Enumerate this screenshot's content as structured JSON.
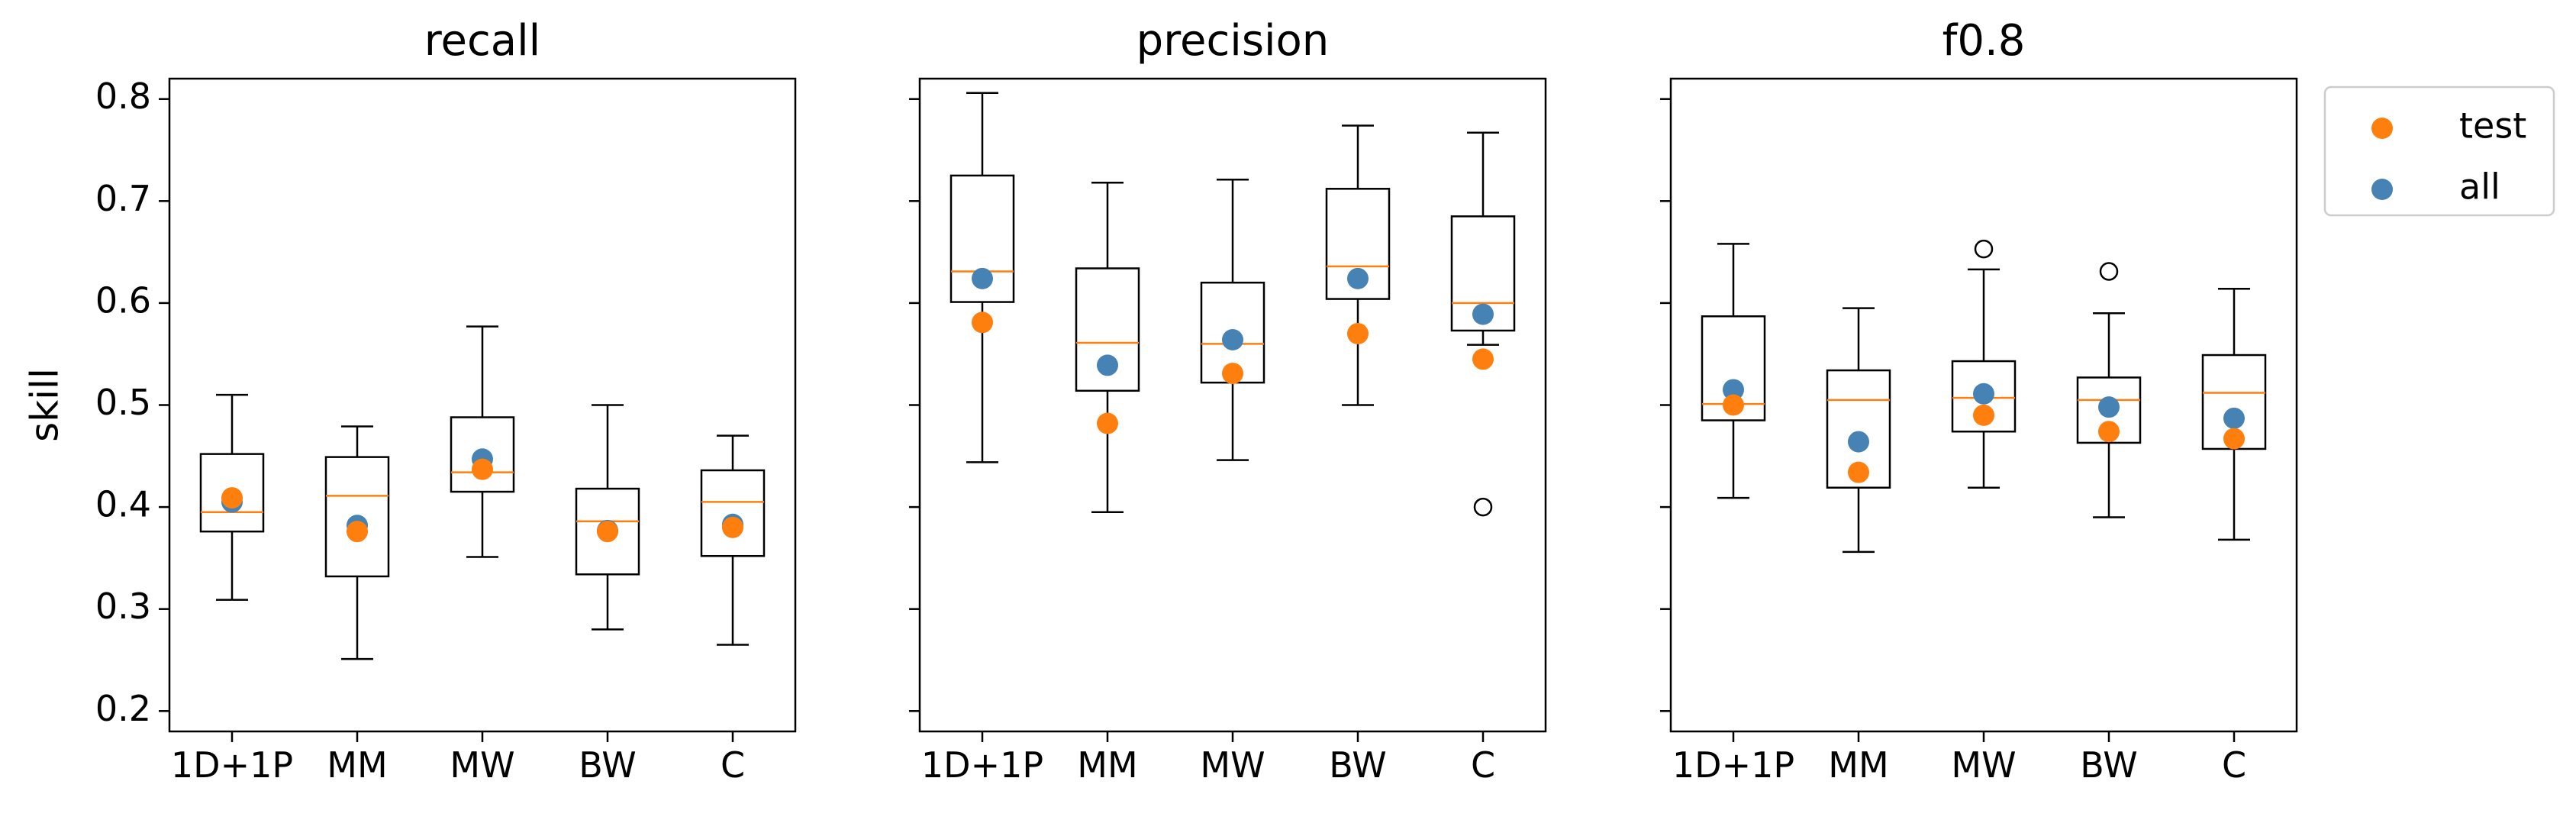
{
  "chart_data": {
    "type": "box",
    "ylabel": "skill",
    "ylim": [
      0.18,
      0.82
    ],
    "yticks": [
      0.2,
      0.3,
      0.4,
      0.5,
      0.6,
      0.7,
      0.8
    ],
    "ytick_labels": [
      "0.2",
      "0.3",
      "0.4",
      "0.5",
      "0.6",
      "0.7",
      "0.8"
    ],
    "categories": [
      "1D+1P",
      "MM",
      "MW",
      "BW",
      "C"
    ],
    "legend": {
      "placement": "upper-right-outside",
      "entries": [
        {
          "name": "test",
          "color": "#ff7f0e"
        },
        {
          "name": "all",
          "color": "#4682b4"
        }
      ]
    },
    "colors": {
      "median": "#ff7f0e",
      "test": "#ff7f0e",
      "all": "#4682b4",
      "box": "#000000"
    },
    "panels": [
      {
        "title": "recall",
        "boxes": [
          {
            "category": "1D+1P",
            "whislo": 0.309,
            "q1": 0.376,
            "med": 0.395,
            "q3": 0.452,
            "whishi": 0.51,
            "fliers": []
          },
          {
            "category": "MM",
            "whislo": 0.251,
            "q1": 0.332,
            "med": 0.411,
            "q3": 0.449,
            "whishi": 0.479,
            "fliers": []
          },
          {
            "category": "MW",
            "whislo": 0.351,
            "q1": 0.415,
            "med": 0.434,
            "q3": 0.488,
            "whishi": 0.577,
            "fliers": []
          },
          {
            "category": "BW",
            "whislo": 0.28,
            "q1": 0.334,
            "med": 0.386,
            "q3": 0.418,
            "whishi": 0.5,
            "fliers": []
          },
          {
            "category": "C",
            "whislo": 0.265,
            "q1": 0.352,
            "med": 0.405,
            "q3": 0.436,
            "whishi": 0.47,
            "fliers": []
          }
        ],
        "series": [
          {
            "name": "all",
            "values": [
              0.405,
              0.382,
              0.447,
              0.377,
              0.383
            ]
          },
          {
            "name": "test",
            "values": [
              0.409,
              0.376,
              0.437,
              0.376,
              0.38
            ]
          }
        ]
      },
      {
        "title": "precision",
        "boxes": [
          {
            "category": "1D+1P",
            "whislo": 0.444,
            "q1": 0.601,
            "med": 0.631,
            "q3": 0.725,
            "whishi": 0.806,
            "fliers": []
          },
          {
            "category": "MM",
            "whislo": 0.395,
            "q1": 0.514,
            "med": 0.561,
            "q3": 0.634,
            "whishi": 0.718,
            "fliers": []
          },
          {
            "category": "MW",
            "whislo": 0.446,
            "q1": 0.522,
            "med": 0.56,
            "q3": 0.62,
            "whishi": 0.721,
            "fliers": []
          },
          {
            "category": "BW",
            "whislo": 0.5,
            "q1": 0.604,
            "med": 0.636,
            "q3": 0.712,
            "whishi": 0.774,
            "fliers": []
          },
          {
            "category": "C",
            "whislo": 0.559,
            "q1": 0.573,
            "med": 0.6,
            "q3": 0.685,
            "whishi": 0.767,
            "fliers": [
              0.4
            ]
          }
        ],
        "series": [
          {
            "name": "all",
            "values": [
              0.624,
              0.539,
              0.564,
              0.624,
              0.589
            ]
          },
          {
            "name": "test",
            "values": [
              0.581,
              0.482,
              0.531,
              0.57,
              0.545
            ]
          }
        ]
      },
      {
        "title": "f0.8",
        "boxes": [
          {
            "category": "1D+1P",
            "whislo": 0.409,
            "q1": 0.485,
            "med": 0.501,
            "q3": 0.587,
            "whishi": 0.658,
            "fliers": []
          },
          {
            "category": "MM",
            "whislo": 0.356,
            "q1": 0.419,
            "med": 0.505,
            "q3": 0.534,
            "whishi": 0.595,
            "fliers": []
          },
          {
            "category": "MW",
            "whislo": 0.419,
            "q1": 0.474,
            "med": 0.507,
            "q3": 0.543,
            "whishi": 0.633,
            "fliers": [
              0.653
            ]
          },
          {
            "category": "BW",
            "whislo": 0.39,
            "q1": 0.463,
            "med": 0.505,
            "q3": 0.527,
            "whishi": 0.59,
            "fliers": [
              0.631
            ]
          },
          {
            "category": "C",
            "whislo": 0.368,
            "q1": 0.457,
            "med": 0.512,
            "q3": 0.549,
            "whishi": 0.614,
            "fliers": []
          }
        ],
        "series": [
          {
            "name": "all",
            "values": [
              0.515,
              0.464,
              0.511,
              0.498,
              0.487
            ]
          },
          {
            "name": "test",
            "values": [
              0.5,
              0.434,
              0.49,
              0.474,
              0.467
            ]
          }
        ]
      }
    ]
  }
}
